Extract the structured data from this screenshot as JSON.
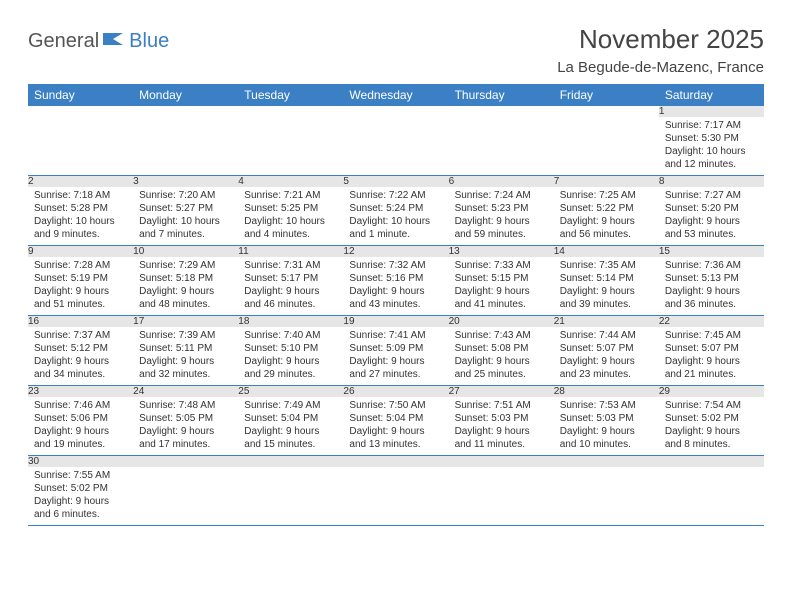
{
  "logo": {
    "text1": "General",
    "text2": "Blue"
  },
  "title": "November 2025",
  "location": "La Begude-de-Mazenc, France",
  "colors": {
    "headerBg": "#3b7fc4",
    "headerText": "#ffffff",
    "dayNumBg": "#e6e6e6",
    "rule": "#3b7fc4"
  },
  "weekdays": [
    "Sunday",
    "Monday",
    "Tuesday",
    "Wednesday",
    "Thursday",
    "Friday",
    "Saturday"
  ],
  "weeks": [
    [
      null,
      null,
      null,
      null,
      null,
      null,
      {
        "n": "1",
        "sr": "Sunrise: 7:17 AM",
        "ss": "Sunset: 5:30 PM",
        "dl1": "Daylight: 10 hours",
        "dl2": "and 12 minutes."
      }
    ],
    [
      {
        "n": "2",
        "sr": "Sunrise: 7:18 AM",
        "ss": "Sunset: 5:28 PM",
        "dl1": "Daylight: 10 hours",
        "dl2": "and 9 minutes."
      },
      {
        "n": "3",
        "sr": "Sunrise: 7:20 AM",
        "ss": "Sunset: 5:27 PM",
        "dl1": "Daylight: 10 hours",
        "dl2": "and 7 minutes."
      },
      {
        "n": "4",
        "sr": "Sunrise: 7:21 AM",
        "ss": "Sunset: 5:25 PM",
        "dl1": "Daylight: 10 hours",
        "dl2": "and 4 minutes."
      },
      {
        "n": "5",
        "sr": "Sunrise: 7:22 AM",
        "ss": "Sunset: 5:24 PM",
        "dl1": "Daylight: 10 hours",
        "dl2": "and 1 minute."
      },
      {
        "n": "6",
        "sr": "Sunrise: 7:24 AM",
        "ss": "Sunset: 5:23 PM",
        "dl1": "Daylight: 9 hours",
        "dl2": "and 59 minutes."
      },
      {
        "n": "7",
        "sr": "Sunrise: 7:25 AM",
        "ss": "Sunset: 5:22 PM",
        "dl1": "Daylight: 9 hours",
        "dl2": "and 56 minutes."
      },
      {
        "n": "8",
        "sr": "Sunrise: 7:27 AM",
        "ss": "Sunset: 5:20 PM",
        "dl1": "Daylight: 9 hours",
        "dl2": "and 53 minutes."
      }
    ],
    [
      {
        "n": "9",
        "sr": "Sunrise: 7:28 AM",
        "ss": "Sunset: 5:19 PM",
        "dl1": "Daylight: 9 hours",
        "dl2": "and 51 minutes."
      },
      {
        "n": "10",
        "sr": "Sunrise: 7:29 AM",
        "ss": "Sunset: 5:18 PM",
        "dl1": "Daylight: 9 hours",
        "dl2": "and 48 minutes."
      },
      {
        "n": "11",
        "sr": "Sunrise: 7:31 AM",
        "ss": "Sunset: 5:17 PM",
        "dl1": "Daylight: 9 hours",
        "dl2": "and 46 minutes."
      },
      {
        "n": "12",
        "sr": "Sunrise: 7:32 AM",
        "ss": "Sunset: 5:16 PM",
        "dl1": "Daylight: 9 hours",
        "dl2": "and 43 minutes."
      },
      {
        "n": "13",
        "sr": "Sunrise: 7:33 AM",
        "ss": "Sunset: 5:15 PM",
        "dl1": "Daylight: 9 hours",
        "dl2": "and 41 minutes."
      },
      {
        "n": "14",
        "sr": "Sunrise: 7:35 AM",
        "ss": "Sunset: 5:14 PM",
        "dl1": "Daylight: 9 hours",
        "dl2": "and 39 minutes."
      },
      {
        "n": "15",
        "sr": "Sunrise: 7:36 AM",
        "ss": "Sunset: 5:13 PM",
        "dl1": "Daylight: 9 hours",
        "dl2": "and 36 minutes."
      }
    ],
    [
      {
        "n": "16",
        "sr": "Sunrise: 7:37 AM",
        "ss": "Sunset: 5:12 PM",
        "dl1": "Daylight: 9 hours",
        "dl2": "and 34 minutes."
      },
      {
        "n": "17",
        "sr": "Sunrise: 7:39 AM",
        "ss": "Sunset: 5:11 PM",
        "dl1": "Daylight: 9 hours",
        "dl2": "and 32 minutes."
      },
      {
        "n": "18",
        "sr": "Sunrise: 7:40 AM",
        "ss": "Sunset: 5:10 PM",
        "dl1": "Daylight: 9 hours",
        "dl2": "and 29 minutes."
      },
      {
        "n": "19",
        "sr": "Sunrise: 7:41 AM",
        "ss": "Sunset: 5:09 PM",
        "dl1": "Daylight: 9 hours",
        "dl2": "and 27 minutes."
      },
      {
        "n": "20",
        "sr": "Sunrise: 7:43 AM",
        "ss": "Sunset: 5:08 PM",
        "dl1": "Daylight: 9 hours",
        "dl2": "and 25 minutes."
      },
      {
        "n": "21",
        "sr": "Sunrise: 7:44 AM",
        "ss": "Sunset: 5:07 PM",
        "dl1": "Daylight: 9 hours",
        "dl2": "and 23 minutes."
      },
      {
        "n": "22",
        "sr": "Sunrise: 7:45 AM",
        "ss": "Sunset: 5:07 PM",
        "dl1": "Daylight: 9 hours",
        "dl2": "and 21 minutes."
      }
    ],
    [
      {
        "n": "23",
        "sr": "Sunrise: 7:46 AM",
        "ss": "Sunset: 5:06 PM",
        "dl1": "Daylight: 9 hours",
        "dl2": "and 19 minutes."
      },
      {
        "n": "24",
        "sr": "Sunrise: 7:48 AM",
        "ss": "Sunset: 5:05 PM",
        "dl1": "Daylight: 9 hours",
        "dl2": "and 17 minutes."
      },
      {
        "n": "25",
        "sr": "Sunrise: 7:49 AM",
        "ss": "Sunset: 5:04 PM",
        "dl1": "Daylight: 9 hours",
        "dl2": "and 15 minutes."
      },
      {
        "n": "26",
        "sr": "Sunrise: 7:50 AM",
        "ss": "Sunset: 5:04 PM",
        "dl1": "Daylight: 9 hours",
        "dl2": "and 13 minutes."
      },
      {
        "n": "27",
        "sr": "Sunrise: 7:51 AM",
        "ss": "Sunset: 5:03 PM",
        "dl1": "Daylight: 9 hours",
        "dl2": "and 11 minutes."
      },
      {
        "n": "28",
        "sr": "Sunrise: 7:53 AM",
        "ss": "Sunset: 5:03 PM",
        "dl1": "Daylight: 9 hours",
        "dl2": "and 10 minutes."
      },
      {
        "n": "29",
        "sr": "Sunrise: 7:54 AM",
        "ss": "Sunset: 5:02 PM",
        "dl1": "Daylight: 9 hours",
        "dl2": "and 8 minutes."
      }
    ],
    [
      {
        "n": "30",
        "sr": "Sunrise: 7:55 AM",
        "ss": "Sunset: 5:02 PM",
        "dl1": "Daylight: 9 hours",
        "dl2": "and 6 minutes."
      },
      null,
      null,
      null,
      null,
      null,
      null
    ]
  ]
}
